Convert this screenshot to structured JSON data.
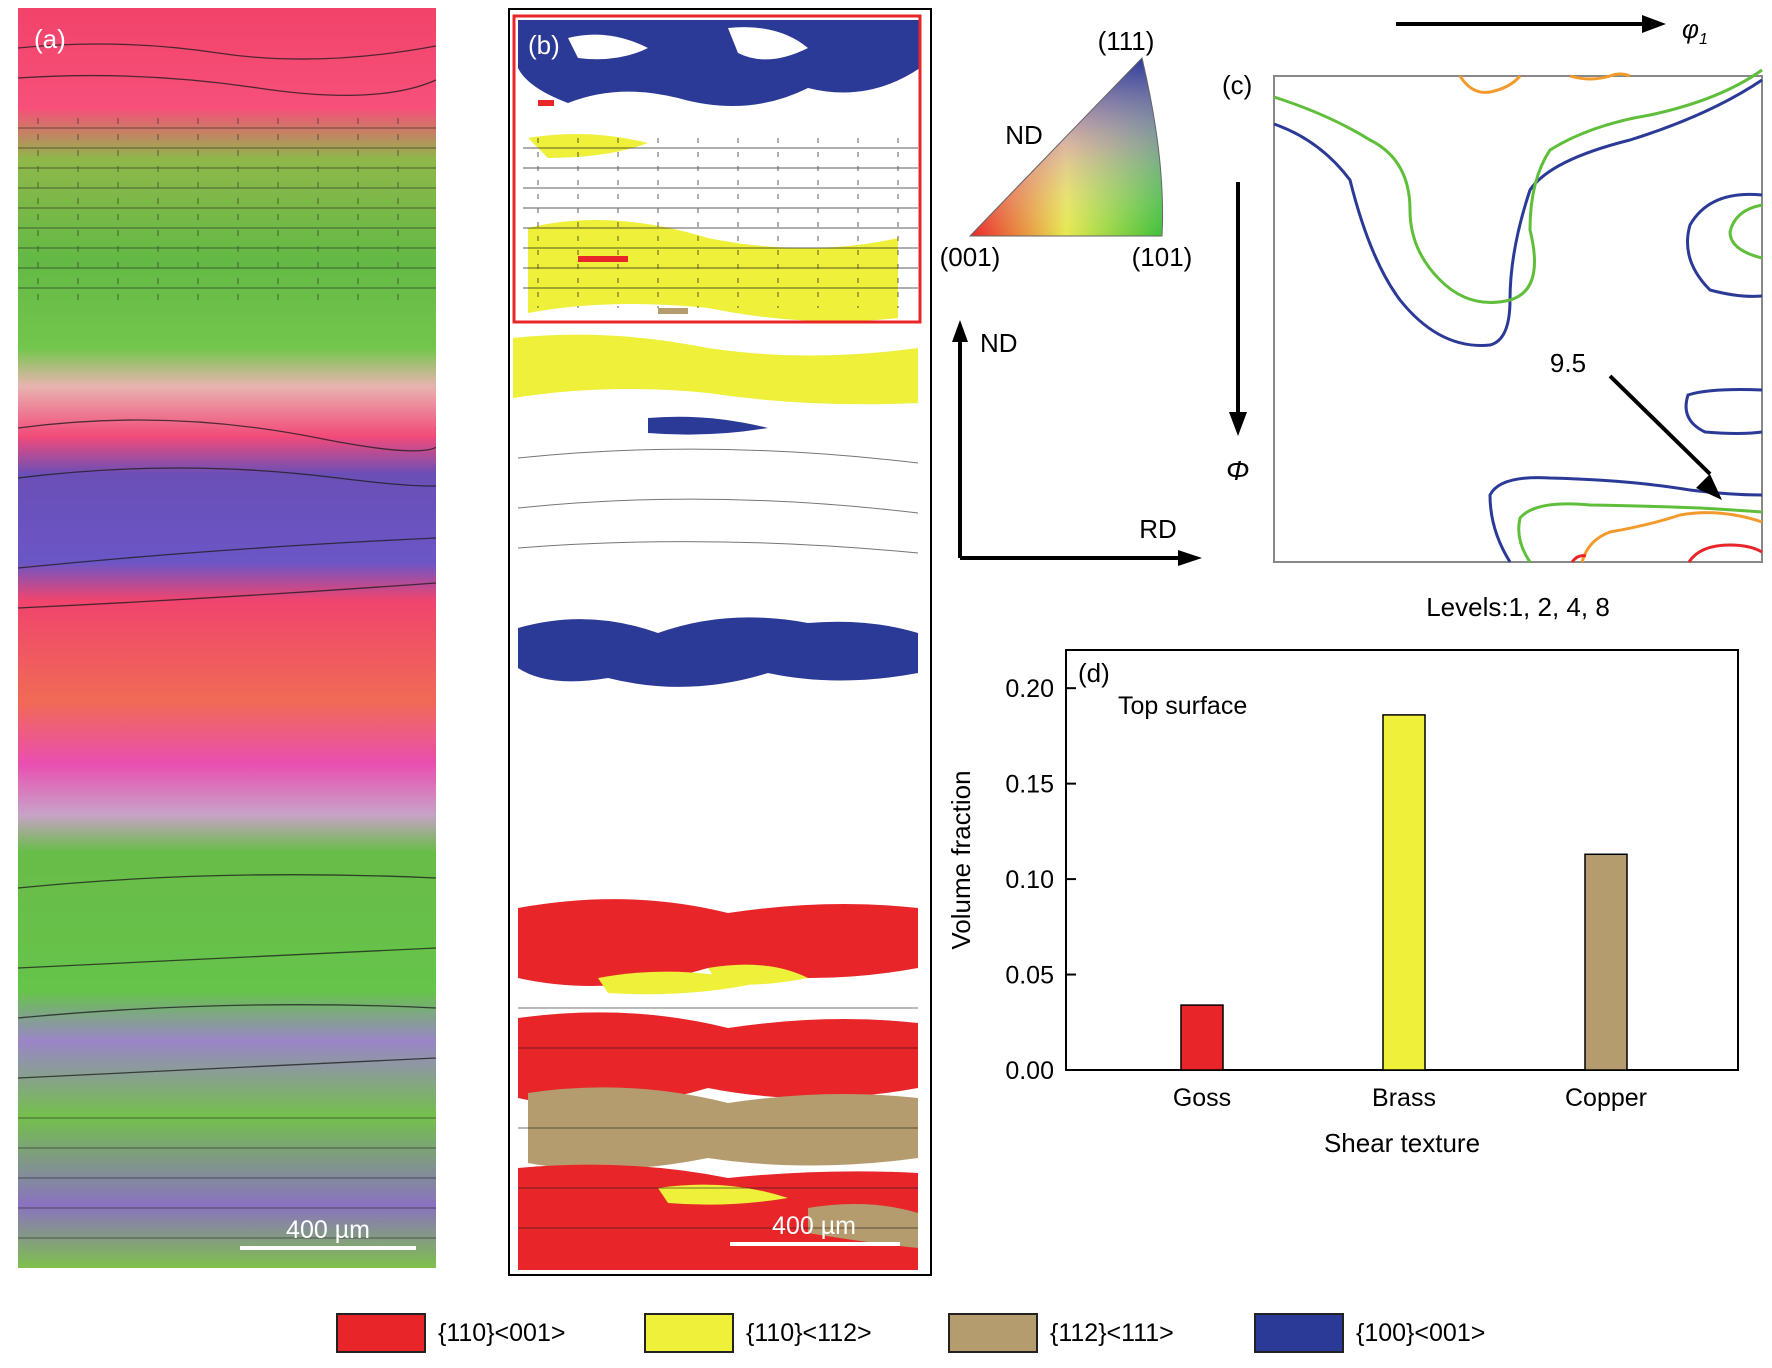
{
  "panels": {
    "a": {
      "label": "(a)",
      "scalebar": "400 µm"
    },
    "b": {
      "label": "(b)",
      "scalebar": "400 µm"
    },
    "c": {
      "label": "(c)"
    },
    "d": {
      "label": "(d)"
    }
  },
  "ipf": {
    "corner_111": "(111)",
    "corner_001": "(001)",
    "corner_101": "(101)",
    "direction": "ND"
  },
  "axes_sketch": {
    "nd": "ND",
    "rd": "RD"
  },
  "odf": {
    "phi1": "φ",
    "phi1_sub": "1",
    "Phi": "Φ",
    "peak": "9.5",
    "levels": "Levels:1, 2, 4, 8"
  },
  "colors": {
    "goss": "#e8262a",
    "brass": "#eef03a",
    "copper": "#b59c6e",
    "cube": "#2b3a97",
    "level1": "#2b3a97",
    "level2": "#5fbf3a",
    "level4": "#f39a2c",
    "level8": "#e8262a"
  },
  "chart_data": {
    "type": "bar",
    "annotation": "Top surface",
    "categories": [
      "Goss",
      "Brass",
      "Copper"
    ],
    "values": [
      0.034,
      0.186,
      0.113
    ],
    "bar_colors": [
      "#e8262a",
      "#eef03a",
      "#b59c6e"
    ],
    "xlabel": "Shear texture",
    "ylabel": "Volume fraction",
    "ylim": [
      0,
      0.22
    ],
    "yticks": [
      "0.00",
      "0.05",
      "0.10",
      "0.15",
      "0.20"
    ],
    "grid": false
  },
  "legend": [
    {
      "label": "{110}<001>",
      "color": "#e8262a"
    },
    {
      "label": "{110}<112>",
      "color": "#eef03a"
    },
    {
      "label": "{112}<111>",
      "color": "#b59c6e"
    },
    {
      "label": "{100}<001>",
      "color": "#2b3a97"
    }
  ]
}
